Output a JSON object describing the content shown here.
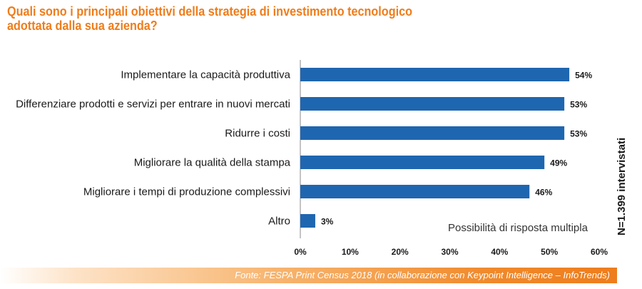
{
  "title": {
    "line1": "Quali sono i principali obiettivi della strategia di investimento tecnologico",
    "line2": "adottata dalla sua azienda?"
  },
  "side_note": "N=1.399 intervistati",
  "multi_note": "Possibilità di risposta multipla",
  "source": "Fonte: FESPA Print Census 2018 (in collaborazione con Keypoint Intelligence – InfoTrends)",
  "colors": {
    "bar": "#1f66b0",
    "title": "#ee7d1c",
    "footer": "#ee7d1c"
  },
  "chart_data": {
    "type": "bar",
    "orientation": "horizontal",
    "categories": [
      "Implementare la capacità produttiva",
      "Differenziare prodotti e servizi per entrare in nuovi mercati",
      "Ridurre i costi",
      "Migliorare la qualità della stampa",
      "Migliorare i tempi di produzione complessivi",
      "Altro"
    ],
    "values": [
      54,
      53,
      53,
      49,
      46,
      3
    ],
    "value_labels": [
      "54%",
      "53%",
      "53%",
      "49%",
      "46%",
      "3%"
    ],
    "x_ticks": [
      "0%",
      "10%",
      "20%",
      "30%",
      "40%",
      "50%",
      "60%"
    ],
    "xlim": [
      0,
      60
    ],
    "unit": "%",
    "grid": false
  }
}
